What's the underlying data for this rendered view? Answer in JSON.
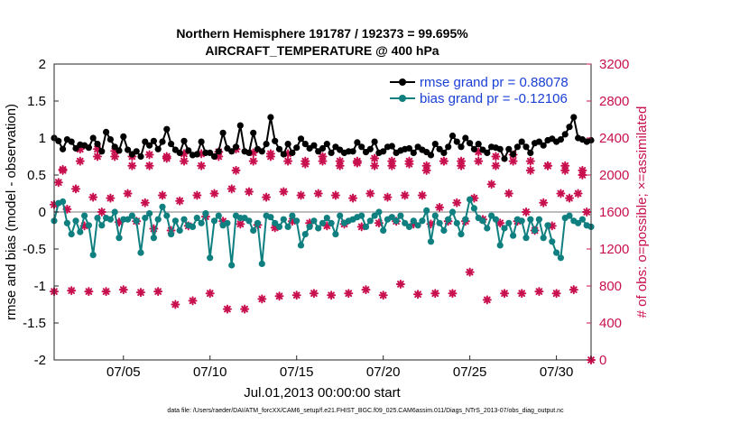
{
  "chart_data": {
    "type": "line",
    "title": "Northern Hemisphere 191787 / 192373 = 99.695%",
    "subtitle": "AIRCRAFT_TEMPERATURE @ 400 hPa",
    "ylabel": "rmse and bias (model - observation)",
    "ylabel_right": "# of obs: o=possible; ×=assimilated",
    "xlabel": "Jul.01,2013 00:00:00 start",
    "footnote": "data file: /Users/raeder/DAI/ATM_forcXX/CAM6_setup/f.e21.FHIST_BGC.f09_025.CAM6assim.011/Diags_NTrS_2013-07/obs_diag_output.nc",
    "xlim": [
      1,
      32
    ],
    "ylim": [
      -2,
      2
    ],
    "ylim_right": [
      0,
      3200
    ],
    "yticks": [
      "-2",
      "-1.5",
      "-1",
      "-0.5",
      "0",
      "0.5",
      "1",
      "1.5",
      "2"
    ],
    "yticks_right": [
      "0",
      "400",
      "800",
      "1200",
      "1600",
      "2000",
      "2400",
      "2800",
      "3200"
    ],
    "xticks": [
      {
        "x": 5,
        "label": "07/05"
      },
      {
        "x": 10,
        "label": "07/10"
      },
      {
        "x": 15,
        "label": "07/15"
      },
      {
        "x": 20,
        "label": "07/20"
      },
      {
        "x": 25,
        "label": "07/25"
      },
      {
        "x": 30,
        "label": "07/30"
      }
    ],
    "legend": {
      "position": "top-right",
      "entries": [
        "rmse grand pr = 0.88078",
        "bias grand pr = -0.12106"
      ]
    },
    "colors": {
      "rmse": "#000000",
      "bias": "#0f7f80",
      "obs": "#c8104f",
      "zero": "#bdbdbd",
      "legend_text": "#1a3fd6"
    },
    "series": [
      {
        "name": "rmse",
        "x": [
          1.0,
          1.25,
          1.5,
          1.75,
          2.0,
          2.25,
          2.5,
          2.75,
          3.0,
          3.25,
          3.5,
          3.75,
          4.0,
          4.25,
          4.5,
          4.75,
          5.0,
          5.25,
          5.5,
          5.75,
          6.0,
          6.25,
          6.5,
          6.75,
          7.0,
          7.25,
          7.5,
          7.75,
          8.0,
          8.25,
          8.5,
          8.75,
          9.0,
          9.25,
          9.5,
          9.75,
          10.0,
          10.25,
          10.5,
          10.75,
          11.0,
          11.25,
          11.5,
          11.75,
          12.0,
          12.25,
          12.5,
          12.75,
          13.0,
          13.25,
          13.5,
          13.75,
          14.0,
          14.25,
          14.5,
          14.75,
          15.0,
          15.25,
          15.5,
          15.75,
          16.0,
          16.25,
          16.5,
          16.75,
          17.0,
          17.25,
          17.5,
          17.75,
          18.0,
          18.25,
          18.5,
          18.75,
          19.0,
          19.25,
          19.5,
          19.75,
          20.0,
          20.25,
          20.5,
          20.75,
          21.0,
          21.25,
          21.5,
          21.75,
          22.0,
          22.25,
          22.5,
          22.75,
          23.0,
          23.25,
          23.5,
          23.75,
          24.0,
          24.25,
          24.5,
          24.75,
          25.0,
          25.25,
          25.5,
          25.75,
          26.0,
          26.25,
          26.5,
          26.75,
          27.0,
          27.25,
          27.5,
          27.75,
          28.0,
          28.25,
          28.5,
          28.75,
          29.0,
          29.25,
          29.5,
          29.75,
          30.0,
          30.25,
          30.5,
          30.75,
          31.0,
          31.25,
          31.5,
          31.75,
          32.0
        ],
        "values": [
          1.0,
          0.96,
          0.85,
          0.98,
          0.95,
          0.86,
          0.91,
          0.9,
          0.87,
          1.0,
          0.92,
          0.82,
          1.08,
          0.98,
          0.88,
          0.83,
          1.02,
          0.84,
          0.78,
          0.82,
          0.75,
          0.95,
          0.9,
          0.96,
          0.85,
          0.95,
          1.12,
          0.92,
          0.84,
          0.8,
          0.96,
          0.83,
          0.77,
          0.78,
          0.95,
          0.8,
          0.8,
          0.75,
          0.82,
          1.07,
          0.86,
          0.82,
          0.88,
          1.17,
          0.82,
          0.8,
          1.07,
          0.85,
          0.82,
          0.92,
          1.28,
          0.96,
          0.85,
          0.78,
          0.92,
          0.8,
          0.87,
          0.99,
          0.92,
          0.86,
          0.9,
          0.82,
          0.86,
          0.92,
          0.8,
          0.88,
          0.84,
          0.8,
          0.82,
          0.82,
          0.94,
          0.88,
          0.81,
          0.85,
          0.95,
          0.8,
          0.82,
          0.88,
          0.89,
          0.8,
          0.83,
          0.85,
          0.86,
          0.8,
          0.88,
          0.84,
          0.81,
          0.77,
          0.92,
          0.85,
          0.8,
          0.88,
          1.03,
          0.95,
          0.88,
          1.0,
          0.93,
          0.85,
          0.92,
          0.84,
          0.8,
          0.88,
          0.87,
          0.85,
          0.72,
          0.85,
          0.78,
          0.88,
          0.95,
          0.88,
          0.8,
          0.93,
          0.95,
          0.9,
          0.97,
          0.99,
          0.95,
          0.98,
          1.05,
          1.15,
          1.28,
          1.0,
          0.98,
          0.95,
          0.97
        ]
      },
      {
        "name": "bias",
        "x": [
          1.0,
          1.25,
          1.5,
          1.75,
          2.0,
          2.25,
          2.5,
          2.75,
          3.0,
          3.25,
          3.5,
          3.75,
          4.0,
          4.25,
          4.5,
          4.75,
          5.0,
          5.25,
          5.5,
          5.75,
          6.0,
          6.25,
          6.5,
          6.75,
          7.0,
          7.25,
          7.5,
          7.75,
          8.0,
          8.25,
          8.5,
          8.75,
          9.0,
          9.25,
          9.5,
          9.75,
          10.0,
          10.25,
          10.5,
          10.75,
          11.0,
          11.25,
          11.5,
          11.75,
          12.0,
          12.25,
          12.5,
          12.75,
          13.0,
          13.25,
          13.5,
          13.75,
          14.0,
          14.25,
          14.5,
          14.75,
          15.0,
          15.25,
          15.5,
          15.75,
          16.0,
          16.25,
          16.5,
          16.75,
          17.0,
          17.25,
          17.5,
          17.75,
          18.0,
          18.25,
          18.5,
          18.75,
          19.0,
          19.25,
          19.5,
          19.75,
          20.0,
          20.25,
          20.5,
          20.75,
          21.0,
          21.25,
          21.5,
          21.75,
          22.0,
          22.25,
          22.5,
          22.75,
          23.0,
          23.25,
          23.5,
          23.75,
          24.0,
          24.25,
          24.5,
          24.75,
          25.0,
          25.25,
          25.5,
          25.75,
          26.0,
          26.25,
          26.5,
          26.75,
          27.0,
          27.25,
          27.5,
          27.75,
          28.0,
          28.25,
          28.5,
          28.75,
          29.0,
          29.25,
          29.5,
          29.75,
          30.0,
          30.25,
          30.5,
          30.75,
          31.0,
          31.25,
          31.5,
          31.75,
          32.0
        ],
        "values": [
          -0.12,
          0.12,
          0.14,
          -0.15,
          -0.3,
          -0.12,
          -0.27,
          -0.05,
          -0.18,
          -0.58,
          -0.08,
          -0.18,
          -0.08,
          -0.1,
          0.0,
          -0.35,
          -0.1,
          -0.1,
          -0.05,
          -0.12,
          -0.55,
          -0.08,
          -0.02,
          -0.35,
          -0.1,
          0.07,
          -0.05,
          -0.3,
          -0.12,
          -0.25,
          -0.1,
          -0.18,
          -0.2,
          -0.08,
          -0.15,
          -0.02,
          -0.62,
          -0.12,
          -0.05,
          -0.18,
          -0.15,
          -0.72,
          -0.05,
          -0.08,
          -0.08,
          -0.12,
          -0.25,
          -0.15,
          -0.7,
          -0.05,
          -0.07,
          -0.15,
          -0.2,
          -0.1,
          -0.2,
          -0.05,
          -0.12,
          -0.45,
          -0.3,
          -0.2,
          -0.12,
          -0.22,
          -0.15,
          -0.08,
          -0.15,
          -0.3,
          -0.05,
          -0.15,
          -0.12,
          -0.1,
          -0.07,
          -0.05,
          -0.2,
          -0.12,
          -0.05,
          0.0,
          -0.25,
          -0.1,
          -0.07,
          -0.12,
          -0.05,
          -0.15,
          -0.2,
          -0.12,
          -0.18,
          -0.12,
          0.02,
          -0.4,
          -0.05,
          -0.15,
          -0.25,
          -0.1,
          0.0,
          -0.15,
          -0.3,
          -0.1,
          0.17,
          0.05,
          -0.08,
          -0.12,
          -0.22,
          -0.05,
          -0.1,
          -0.45,
          -0.22,
          -0.15,
          -0.32,
          -0.1,
          -0.12,
          -0.35,
          -0.1,
          -0.25,
          -0.1,
          -0.35,
          -0.18,
          -0.4,
          -0.55,
          -0.62,
          -0.08,
          -0.05,
          -0.12,
          -0.15,
          -0.1,
          -0.18,
          -0.2
        ]
      },
      {
        "name": "obs possible",
        "x": [
          1.0,
          1.5,
          2.5,
          3.5,
          4.5,
          5.5,
          6.5,
          7.5,
          8.5,
          9.5,
          10.5,
          11.5,
          12.5,
          13.5,
          14.5,
          15.5,
          16.5,
          17.5,
          18.5,
          19.5,
          20.5,
          21.5,
          22.5,
          23.5,
          24.5,
          25.5,
          26.5,
          27.5,
          28.5,
          29.5,
          30.5,
          31.5
        ],
        "values": [
          1680,
          2050,
          2150,
          2200,
          2200,
          2100,
          2100,
          2200,
          2150,
          2100,
          2200,
          2050,
          2150,
          2200,
          2150,
          2150,
          2150,
          2100,
          2150,
          2100,
          2100,
          2150,
          2100,
          2150,
          2150,
          2150,
          2200,
          2150,
          2150,
          2100,
          2050,
          2000
        ]
      },
      {
        "name": "obs assimilated",
        "x": [
          1.0,
          1.25,
          1.5,
          1.75,
          2.0,
          2.25,
          2.5,
          2.75,
          3.0,
          3.25,
          3.5,
          3.75,
          4.0,
          4.25,
          4.5,
          4.75,
          5.0,
          5.25,
          5.5,
          5.75,
          6.0,
          6.25,
          6.5,
          6.75,
          7.0,
          7.25,
          7.5,
          7.75,
          8.0,
          8.25,
          8.5,
          8.75,
          9.0,
          9.25,
          9.5,
          9.75,
          10.0,
          10.25,
          10.5,
          10.75,
          11.0,
          11.25,
          11.5,
          11.75,
          12.0,
          12.25,
          12.5,
          12.75,
          13.0,
          13.25,
          13.5,
          13.75,
          14.0,
          14.25,
          14.5,
          14.75,
          15.0,
          15.25,
          15.5,
          15.75,
          16.0,
          16.25,
          16.5,
          16.75,
          17.0,
          17.25,
          17.5,
          17.75,
          18.0,
          18.25,
          18.5,
          18.75,
          19.0,
          19.25,
          19.5,
          19.75,
          20.0,
          20.25,
          20.5,
          20.75,
          21.0,
          21.25,
          21.5,
          21.75,
          22.0,
          22.25,
          22.5,
          22.75,
          23.0,
          23.25,
          23.5,
          23.75,
          24.0,
          24.25,
          24.5,
          24.75,
          25.0,
          25.25,
          25.5,
          25.75,
          26.0,
          26.25,
          26.5,
          26.75,
          27.0,
          27.25,
          27.5,
          27.75,
          28.0,
          28.25,
          28.5,
          28.75,
          29.0,
          29.25,
          29.5,
          29.75,
          30.0,
          30.25,
          30.5,
          30.75,
          31.0,
          31.25,
          31.5,
          31.75,
          32.0
        ],
        "values": [
          740,
          1920,
          2060,
          1630,
          750,
          1850,
          2280,
          1450,
          740,
          1760,
          2280,
          1600,
          740,
          1750,
          2260,
          1490,
          760,
          1800,
          2200,
          1500,
          730,
          1700,
          2220,
          1420,
          740,
          1780,
          2180,
          1400,
          600,
          1720,
          2230,
          1450,
          640,
          1780,
          2230,
          1550,
          720,
          1800,
          2250,
          1500,
          550,
          1850,
          2280,
          1470,
          550,
          1820,
          2240,
          1460,
          660,
          1760,
          2230,
          1430,
          690,
          1820,
          2230,
          1500,
          700,
          1780,
          2120,
          1480,
          720,
          1800,
          2200,
          1450,
          700,
          1780,
          2150,
          1470,
          720,
          1750,
          2130,
          1440,
          760,
          1800,
          2180,
          1480,
          700,
          1760,
          2150,
          1500,
          820,
          1780,
          2120,
          1470,
          710,
          1780,
          2050,
          1470,
          720,
          1650,
          2150,
          1500,
          720,
          1700,
          2100,
          1500,
          950,
          1750,
          2250,
          1520,
          650,
          1900,
          2100,
          1480,
          720,
          1800,
          2220,
          1500,
          720,
          1600,
          2050,
          1400,
          740,
          1700,
          2100,
          1450,
          720,
          1800,
          2100,
          1750,
          760,
          1800,
          2050,
          1600,
          0
        ]
      }
    ]
  }
}
